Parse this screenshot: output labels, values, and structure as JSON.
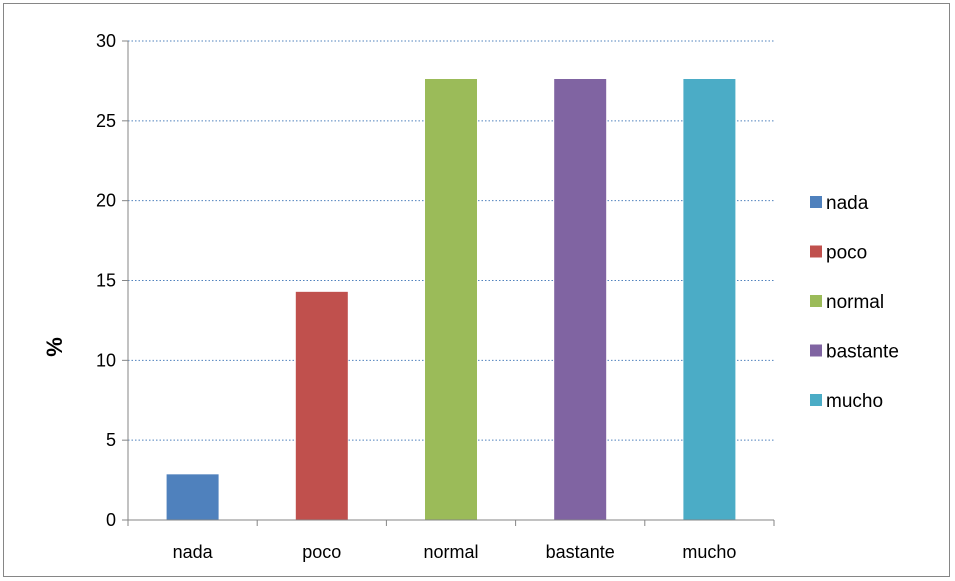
{
  "chart_data": {
    "type": "bar",
    "title": "",
    "xlabel": "",
    "ylabel": "%",
    "categories": [
      "nada",
      "poco",
      "normal",
      "bastante",
      "mucho"
    ],
    "values": [
      2.86,
      14.29,
      27.62,
      27.62,
      27.62
    ],
    "colors": [
      "#4F81BD",
      "#C0504D",
      "#9BBB59",
      "#8064A2",
      "#4BACC6"
    ],
    "ylim": [
      0,
      30
    ],
    "yticks": [
      0,
      5,
      10,
      15,
      20,
      25,
      30
    ],
    "grid": true,
    "legend": {
      "placement": "right",
      "entries": [
        "nada",
        "poco",
        "normal",
        "bastante",
        "mucho"
      ]
    }
  }
}
